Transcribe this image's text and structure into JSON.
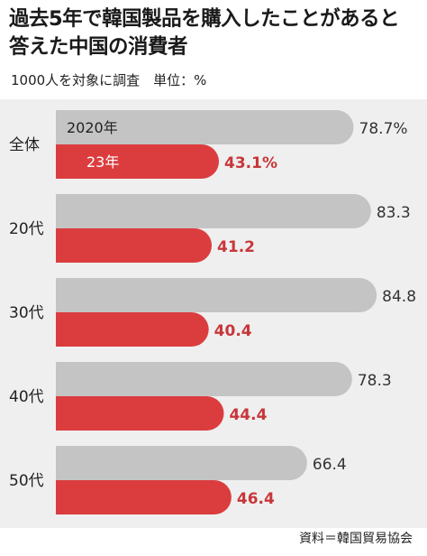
{
  "title_lines": [
    "過去5年で韓国製品を購入したことがあると",
    "答えた中国の消費者"
  ],
  "subtitle": "1000人を対象に調査　単位：%",
  "source": "資料＝韓国貿易協会",
  "colors": {
    "series_2020": "#c4c4c5",
    "series_2023": "#db3d3f",
    "label_2023": "#c8363a",
    "plot_bg": "#efefef"
  },
  "chart_data": {
    "type": "bar",
    "orientation": "horizontal",
    "categories": [
      "全体",
      "20代",
      "30代",
      "40代",
      "50代"
    ],
    "series": [
      {
        "name": "2020年",
        "values": [
          78.7,
          83.3,
          84.8,
          78.3,
          66.4
        ],
        "labels": [
          "78.7%",
          "83.3",
          "84.8",
          "78.3",
          "66.4"
        ]
      },
      {
        "name": "23年",
        "values": [
          43.1,
          41.2,
          40.4,
          44.4,
          46.4
        ],
        "labels": [
          "43.1%",
          "41.2",
          "40.4",
          "44.4",
          "46.4"
        ]
      }
    ],
    "legend": "inside first bars",
    "grid": false
  }
}
